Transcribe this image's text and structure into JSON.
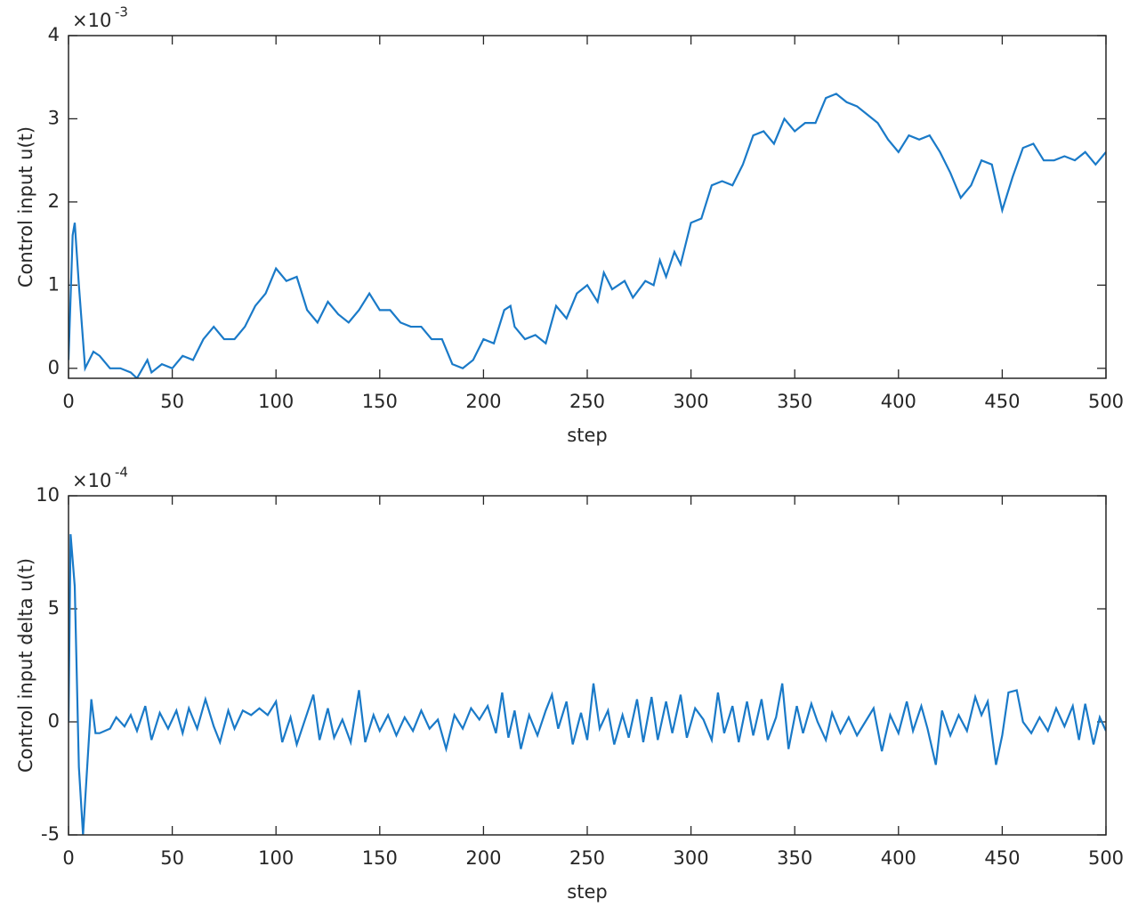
{
  "chart_data": [
    {
      "type": "line",
      "xlabel": "step",
      "ylabel": "Control input u(t)",
      "y_multiplier": "×10",
      "y_exponent": "-3",
      "xlim": [
        0,
        500
      ],
      "xticks": [
        0,
        50,
        100,
        150,
        200,
        250,
        300,
        350,
        400,
        450,
        500
      ],
      "ylim": [
        -0.12,
        4
      ],
      "yticks": [
        0,
        1,
        2,
        3,
        4
      ],
      "grid": false,
      "x": [
        0,
        2,
        3,
        5,
        8,
        10,
        12,
        15,
        20,
        25,
        30,
        33,
        38,
        40,
        45,
        50,
        55,
        60,
        65,
        70,
        75,
        80,
        85,
        90,
        95,
        100,
        105,
        110,
        115,
        120,
        125,
        130,
        135,
        140,
        145,
        150,
        155,
        160,
        165,
        170,
        175,
        180,
        185,
        190,
        195,
        200,
        205,
        210,
        213,
        215,
        220,
        225,
        230,
        235,
        240,
        245,
        250,
        255,
        258,
        262,
        268,
        272,
        278,
        282,
        285,
        288,
        292,
        295,
        300,
        305,
        310,
        315,
        320,
        325,
        330,
        335,
        340,
        345,
        350,
        355,
        360,
        365,
        370,
        375,
        380,
        385,
        390,
        395,
        400,
        405,
        410,
        415,
        420,
        425,
        430,
        435,
        440,
        445,
        450,
        455,
        460,
        465,
        470,
        475,
        480,
        485,
        490,
        495,
        500
      ],
      "series": [
        {
          "color": "#1a7ac8",
          "values": [
            0.1,
            1.6,
            1.75,
            1.0,
            0,
            0.1,
            0.2,
            0.15,
            0,
            0,
            -0.05,
            -0.12,
            0.1,
            -0.05,
            0.05,
            0,
            0.15,
            0.1,
            0.35,
            0.5,
            0.35,
            0.35,
            0.5,
            0.75,
            0.9,
            1.2,
            1.05,
            1.1,
            0.7,
            0.55,
            0.8,
            0.65,
            0.55,
            0.7,
            0.9,
            0.7,
            0.7,
            0.55,
            0.5,
            0.5,
            0.35,
            0.35,
            0.05,
            0,
            0.1,
            0.35,
            0.3,
            0.7,
            0.75,
            0.5,
            0.35,
            0.4,
            0.3,
            0.75,
            0.6,
            0.9,
            1.0,
            0.8,
            1.15,
            0.95,
            1.05,
            0.85,
            1.05,
            1.0,
            1.3,
            1.1,
            1.4,
            1.25,
            1.75,
            1.8,
            2.2,
            2.25,
            2.2,
            2.45,
            2.8,
            2.85,
            2.7,
            3.0,
            2.85,
            2.95,
            2.95,
            3.25,
            3.3,
            3.2,
            3.15,
            3.05,
            2.95,
            2.75,
            2.6,
            2.8,
            2.75,
            2.8,
            2.6,
            2.35,
            2.05,
            2.2,
            2.5,
            2.45,
            1.9,
            2.3,
            2.65,
            2.7,
            2.5,
            2.5,
            2.55,
            2.5,
            2.6,
            2.45,
            2.6
          ]
        }
      ]
    },
    {
      "type": "line",
      "xlabel": "step",
      "ylabel": "Control input delta u(t)",
      "y_multiplier": "×10",
      "y_exponent": "-4",
      "xlim": [
        0,
        500
      ],
      "xticks": [
        0,
        50,
        100,
        150,
        200,
        250,
        300,
        350,
        400,
        450,
        500
      ],
      "ylim": [
        -5,
        10
      ],
      "yticks": [
        -5,
        0,
        5,
        10
      ],
      "grid": false,
      "x": [
        0,
        1,
        3,
        5,
        7,
        9,
        11,
        13,
        15,
        20,
        23,
        27,
        30,
        33,
        37,
        40,
        44,
        48,
        52,
        55,
        58,
        62,
        66,
        70,
        73,
        77,
        80,
        84,
        88,
        92,
        96,
        100,
        103,
        107,
        110,
        114,
        118,
        121,
        125,
        128,
        132,
        136,
        140,
        143,
        147,
        150,
        154,
        158,
        162,
        166,
        170,
        174,
        178,
        182,
        186,
        190,
        194,
        198,
        202,
        206,
        209,
        212,
        215,
        218,
        222,
        226,
        230,
        233,
        236,
        240,
        243,
        247,
        250,
        253,
        256,
        260,
        263,
        267,
        270,
        274,
        277,
        281,
        284,
        288,
        291,
        295,
        298,
        302,
        306,
        310,
        313,
        316,
        320,
        323,
        327,
        330,
        334,
        337,
        341,
        344,
        347,
        351,
        354,
        358,
        361,
        365,
        368,
        372,
        376,
        380,
        384,
        388,
        392,
        396,
        400,
        404,
        407,
        411,
        414,
        418,
        421,
        425,
        429,
        433,
        437,
        440,
        443,
        447,
        450,
        453,
        457,
        460,
        464,
        468,
        472,
        476,
        480,
        484,
        487,
        490,
        494,
        497,
        500
      ],
      "series": [
        {
          "color": "#1a7ac8",
          "values": [
            0,
            8.3,
            6,
            -2,
            -5,
            -2,
            1,
            -0.5,
            -0.5,
            -0.3,
            0.2,
            -0.2,
            0.3,
            -0.4,
            0.7,
            -0.8,
            0.4,
            -0.3,
            0.5,
            -0.5,
            0.6,
            -0.3,
            1.0,
            -0.2,
            -0.9,
            0.5,
            -0.3,
            0.5,
            0.3,
            0.6,
            0.3,
            0.9,
            -0.9,
            0.2,
            -1.0,
            0.1,
            1.2,
            -0.8,
            0.6,
            -0.7,
            0.1,
            -0.9,
            1.4,
            -0.9,
            0.3,
            -0.4,
            0.3,
            -0.6,
            0.2,
            -0.4,
            0.5,
            -0.3,
            0.1,
            -1.2,
            0.3,
            -0.3,
            0.6,
            0.1,
            0.7,
            -0.5,
            1.3,
            -0.7,
            0.5,
            -1.2,
            0.3,
            -0.6,
            0.5,
            1.2,
            -0.3,
            0.9,
            -1.0,
            0.4,
            -0.8,
            1.7,
            -0.3,
            0.5,
            -1.0,
            0.3,
            -0.7,
            1.0,
            -0.9,
            1.1,
            -0.8,
            0.9,
            -0.5,
            1.2,
            -0.7,
            0.6,
            0.1,
            -0.8,
            1.3,
            -0.5,
            0.7,
            -0.9,
            0.9,
            -0.6,
            1.0,
            -0.8,
            0.2,
            1.7,
            -1.2,
            0.7,
            -0.5,
            0.8,
            0.0,
            -0.8,
            0.4,
            -0.5,
            0.2,
            -0.6,
            0.0,
            0.6,
            -1.3,
            0.3,
            -0.5,
            0.9,
            -0.4,
            0.7,
            -0.3,
            -1.9,
            0.5,
            -0.6,
            0.3,
            -0.4,
            1.1,
            0.3,
            0.9,
            -1.9,
            -0.6,
            1.3,
            1.4,
            0.0,
            -0.5,
            0.2,
            -0.4,
            0.6,
            -0.2,
            0.7,
            -0.8,
            0.8,
            -1.0,
            0.2,
            -0.4
          ]
        }
      ]
    }
  ]
}
